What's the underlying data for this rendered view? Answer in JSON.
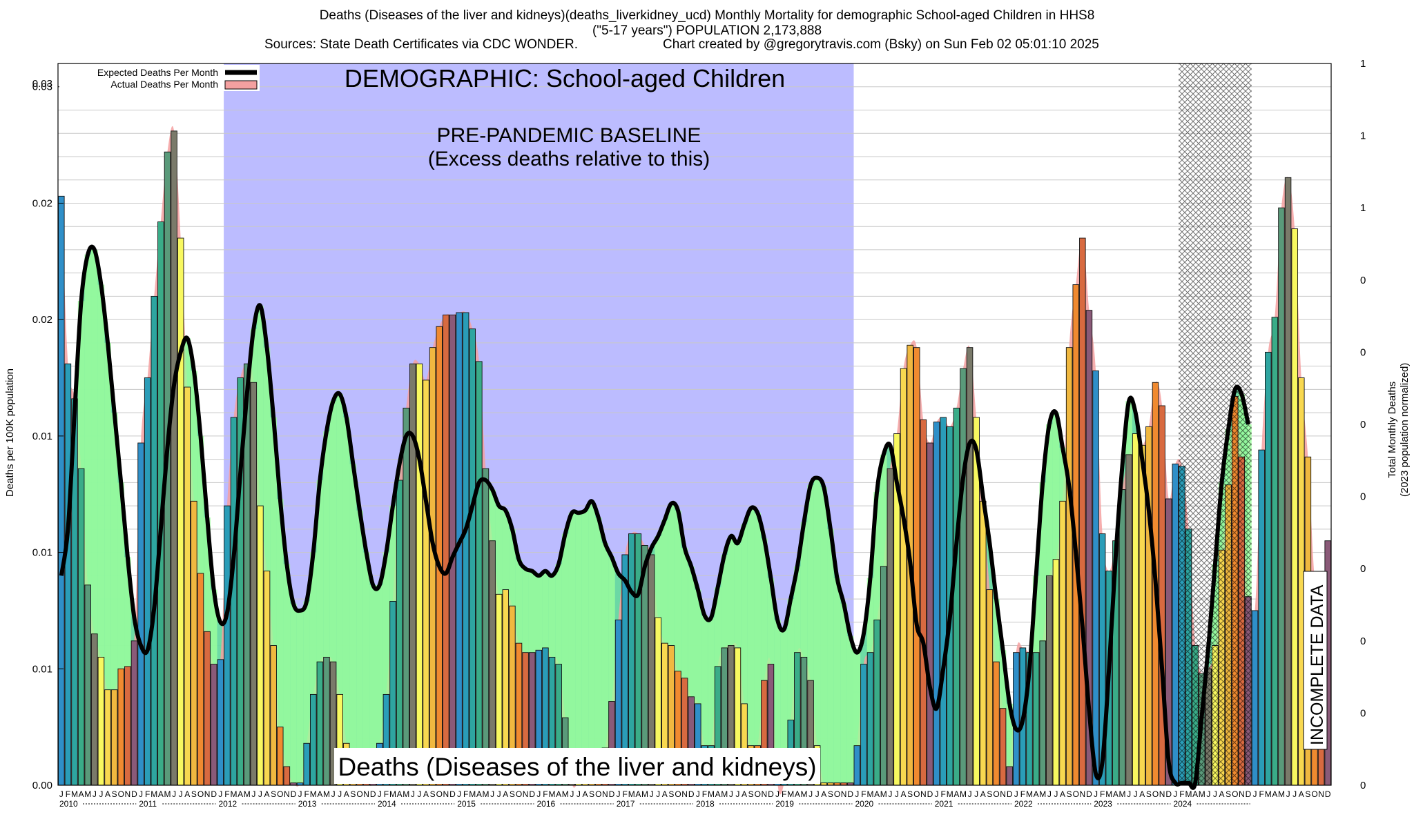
{
  "title_lines": [
    "Deaths (Diseases of the liver and kidneys)(deaths_liverkidney_ucd) Monthly Mortality for demographic School-aged Children in HHS8",
    "(\"5-17 years\") POPULATION 2,173,888"
  ],
  "sources_left": "Sources: State Death Certificates via CDC WONDER.",
  "sources_right": "Chart created by @gregorytravis.com (Bsky) on Sun Feb 02 05:01:10 2025",
  "colors": {
    "baseline_band": "#bcbcff",
    "incomplete_hatch": "#000000",
    "expected_line": "#000000",
    "actual_fill": "#f4a0a0",
    "under_fill": "#66d9a0",
    "excess_fill": "#9cff9c",
    "month_colors": [
      "#2f8fc8",
      "#2a9db8",
      "#2ea5a0",
      "#3aac88",
      "#5a9a7a",
      "#7a7a6a",
      "#f8f860",
      "#f8d850",
      "#f0b840",
      "#f08a30",
      "#d86a40",
      "#8a5a78"
    ]
  },
  "chart_data": {
    "type": "bar",
    "title": "Deaths (Diseases of the liver and kidneys)(deaths_liverkidney_ucd) Monthly Mortality for demographic School-aged Children in HHS8",
    "ylabel": "Deaths per 100K population",
    "ylabel_right": "Total Monthly Deaths\n(2023 population normalized)",
    "ylim": [
      0,
      0.031
    ],
    "y_ticks": [
      0,
      0.005,
      0.01,
      0.015,
      0.02,
      0.025,
      0.03
    ],
    "y_tick_labels": [
      "0.00",
      "0.01",
      "0.01",
      "0.01",
      "0.02",
      "0.02",
      "0.03"
    ],
    "y_top_tick_label": "0.03",
    "right_tick_labels": [
      "0",
      "0",
      "0",
      "0",
      "0",
      "0",
      "0",
      "0",
      "1",
      "1",
      "1"
    ],
    "legend": {
      "placement": "top-left",
      "entries": [
        "Expected Deaths Per Month",
        "Actual Deaths Per Month"
      ]
    },
    "month_letters": [
      "J",
      "F",
      "M",
      "A",
      "M",
      "J",
      "J",
      "A",
      "S",
      "O",
      "N",
      "D"
    ],
    "years": [
      "2010",
      "2011",
      "2012",
      "2013",
      "2014",
      "2015",
      "2016",
      "2017",
      "2018",
      "2019",
      "2020",
      "2021",
      "2022",
      "2023",
      "2024"
    ],
    "annotations": {
      "demographic": "DEMOGRAPHIC: School-aged Children",
      "baseline_line1": "PRE-PANDEMIC BASELINE",
      "baseline_line2": "(Excess deaths relative to this)",
      "bottom_label": "Deaths (Diseases of the liver and kidneys)",
      "incomplete": "INCOMPLETE DATA"
    },
    "baseline_period": [
      "2012-02",
      "2019-12"
    ],
    "incomplete_period": [
      "2024-04",
      "2024-12"
    ],
    "actual": [
      0.0253,
      0.0181,
      0.0166,
      0.0136,
      0.0086,
      0.0065,
      0.0055,
      0.0041,
      0.0041,
      0.005,
      0.0051,
      0.0062,
      0.0147,
      0.0175,
      0.021,
      0.0242,
      0.0272,
      0.0281,
      0.0235,
      0.0171,
      0.0122,
      0.0091,
      0.0066,
      0.0052,
      0.0054,
      0.012,
      0.0158,
      0.0175,
      0.0181,
      0.0173,
      0.012,
      0.0092,
      0.006,
      0.0025,
      0.0008,
      0.0001,
      0.0001,
      0.0018,
      0.0039,
      0.0053,
      0.0055,
      0.0053,
      0.0039,
      0.0018,
      0.0001,
      0.0001,
      0.0001,
      0.0001,
      0.0018,
      0.0039,
      0.0079,
      0.0131,
      0.0162,
      0.0181,
      0.0181,
      0.0174,
      0.0188,
      0.0197,
      0.0202,
      0.0202,
      0.0203,
      0.0203,
      0.0196,
      0.0182,
      0.0136,
      0.0105,
      0.0082,
      0.0084,
      0.0077,
      0.0061,
      0.0057,
      0.0057,
      0.0058,
      0.0059,
      0.0055,
      0.0052,
      0.0029,
      0.0001,
      0.0001,
      0.0001,
      0.0001,
      0.0001,
      0.0016,
      0.0036,
      0.0071,
      0.0099,
      0.0108,
      0.0108,
      0.0103,
      0.0099,
      0.0072,
      0.0061,
      0.006,
      0.0049,
      0.0046,
      0.0038,
      0.0035,
      0.0017,
      0.0017,
      0.0051,
      0.0059,
      0.006,
      0.0059,
      0.0035,
      0.0017,
      0.0017,
      0.0045,
      0.0052,
      0.0001,
      0.0001,
      0.0028,
      0.0057,
      0.0055,
      0.0045,
      0.0017,
      0.0001,
      0.0001,
      0.0001,
      0.0001,
      0.0001,
      0.0017,
      0.0052,
      0.0057,
      0.0071,
      0.0094,
      0.0136,
      0.0151,
      0.0179,
      0.0189,
      0.0188,
      0.0157,
      0.0147,
      0.0156,
      0.0158,
      0.0154,
      0.0162,
      0.0179,
      0.0188,
      0.0158,
      0.0122,
      0.0084,
      0.0053,
      0.0033,
      0.0008,
      0.0057,
      0.0059,
      0.0057,
      0.0057,
      0.0062,
      0.009,
      0.0097,
      0.0122,
      0.0188,
      0.0215,
      0.0235,
      0.0204,
      0.0178,
      0.0108,
      0.0092,
      0.0105,
      0.0127,
      0.0142,
      0.0151,
      0.0146,
      0.0154,
      0.0173,
      0.0163,
      0.0123,
      0.0138,
      0.0137,
      0.011,
      0.006,
      0.0048,
      0.005,
      0.006,
      0.0101,
      0.0129,
      0.0167,
      0.0141,
      0.0081,
      0.0075,
      0.0144,
      0.0186,
      0.0201,
      0.0248,
      0.0261,
      0.0239,
      0.0175,
      0.0141,
      0.0089,
      0.0077,
      0.0105
    ],
    "expected": [
      0.009,
      0.011,
      0.016,
      0.0208,
      0.0228,
      0.023,
      0.0215,
      0.019,
      0.016,
      0.013,
      0.0098,
      0.0072,
      0.006,
      0.0058,
      0.0076,
      0.011,
      0.0145,
      0.0172,
      0.0186,
      0.0192,
      0.0178,
      0.015,
      0.0115,
      0.0084,
      0.007,
      0.0074,
      0.0098,
      0.0134,
      0.0168,
      0.0196,
      0.0206,
      0.0188,
      0.0158,
      0.0123,
      0.0095,
      0.0078,
      0.0075,
      0.0079,
      0.01,
      0.0131,
      0.0152,
      0.0165,
      0.0168,
      0.0158,
      0.0138,
      0.0118,
      0.01,
      0.0086,
      0.0086,
      0.01,
      0.012,
      0.0138,
      0.015,
      0.015,
      0.014,
      0.0122,
      0.0104,
      0.0094,
      0.0091,
      0.0098,
      0.0104,
      0.011,
      0.012,
      0.013,
      0.0131,
      0.0127,
      0.012,
      0.0118,
      0.011,
      0.0097,
      0.0093,
      0.0092,
      0.009,
      0.0092,
      0.009,
      0.0095,
      0.0108,
      0.0117,
      0.0117,
      0.0118,
      0.0122,
      0.0115,
      0.0104,
      0.0098,
      0.0091,
      0.0088,
      0.0083,
      0.0082,
      0.0094,
      0.0102,
      0.0107,
      0.0114,
      0.0121,
      0.0118,
      0.0102,
      0.0094,
      0.0084,
      0.0073,
      0.0072,
      0.0085,
      0.0099,
      0.0107,
      0.0104,
      0.0112,
      0.0119,
      0.0117,
      0.0106,
      0.0089,
      0.0071,
      0.0067,
      0.008,
      0.0094,
      0.0113,
      0.0129,
      0.0132,
      0.0128,
      0.011,
      0.0089,
      0.0078,
      0.0064,
      0.0057,
      0.0065,
      0.0089,
      0.0126,
      0.0142,
      0.0146,
      0.013,
      0.0115,
      0.0096,
      0.0069,
      0.0061,
      0.0042,
      0.0033,
      0.005,
      0.0072,
      0.0104,
      0.0132,
      0.0147,
      0.0144,
      0.0124,
      0.0104,
      0.008,
      0.0058,
      0.0035,
      0.0024,
      0.0028,
      0.005,
      0.009,
      0.013,
      0.0155,
      0.016,
      0.0145,
      0.0128,
      0.01,
      0.0068,
      0.0032,
      0.0005,
      0.001,
      0.005,
      0.0098,
      0.0137,
      0.0165,
      0.016,
      0.014,
      0.0118,
      0.0088,
      0.005,
      0.001,
      0.0001,
      0.0001,
      0.0001,
      0.0001,
      0.003,
      0.006,
      0.0095,
      0.013,
      0.0153,
      0.017,
      0.0168,
      0.0155
    ]
  }
}
